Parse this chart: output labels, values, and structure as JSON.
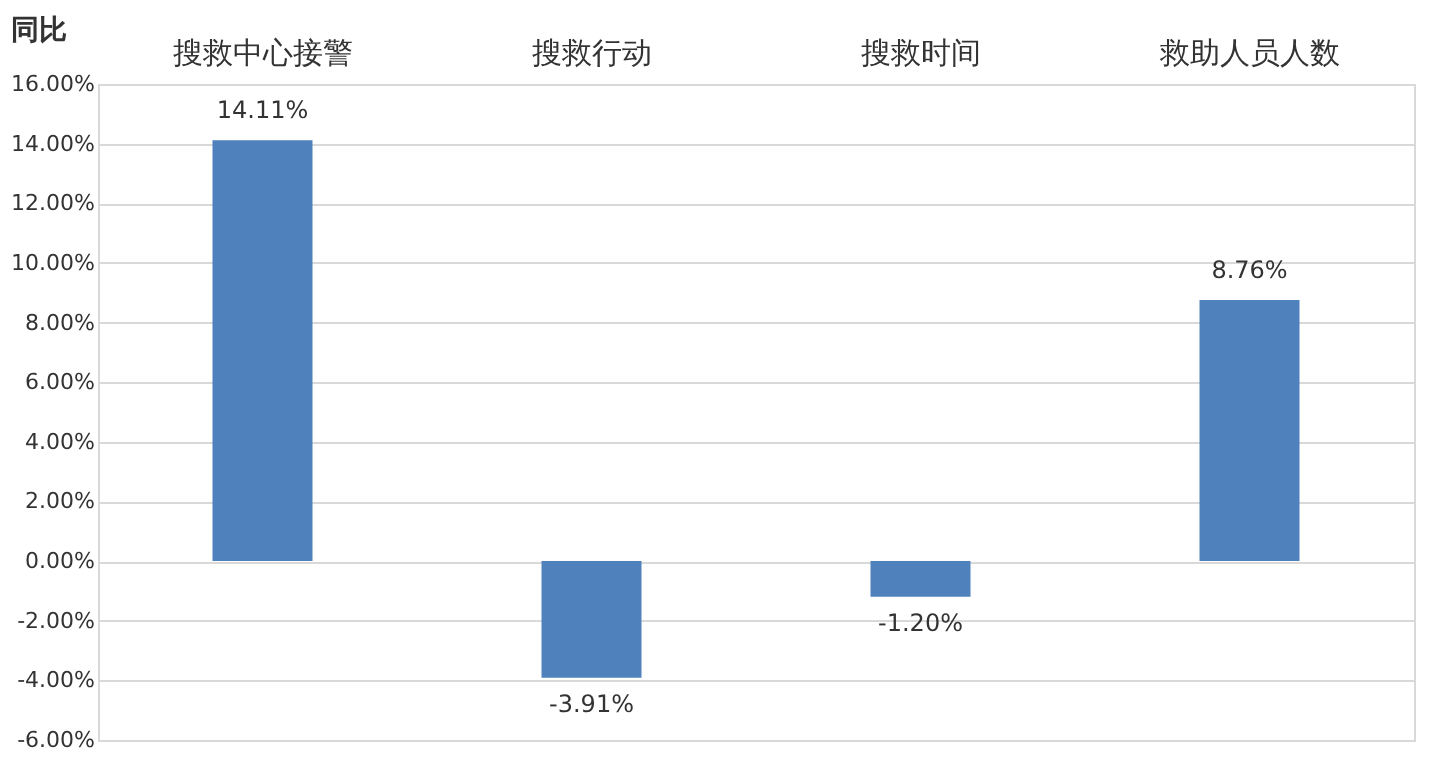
{
  "chart_data": {
    "type": "bar",
    "ylabel": "同比",
    "categories": [
      "搜救中心接警",
      "搜救行动",
      "搜救时间",
      "救助人员人数"
    ],
    "values": [
      14.11,
      -3.91,
      -1.2,
      8.76
    ],
    "value_labels": [
      "14.11%",
      "-3.91%",
      "-1.20%",
      "8.76%"
    ],
    "color": "#4f81bd",
    "ylim": [
      -6,
      16
    ],
    "yticks": [
      {
        "value": -6,
        "label": "-6.00%"
      },
      {
        "value": -4,
        "label": "-4.00%"
      },
      {
        "value": -2,
        "label": "-2.00%"
      },
      {
        "value": 0,
        "label": "0.00%"
      },
      {
        "value": 2,
        "label": "2.00%"
      },
      {
        "value": 4,
        "label": "4.00%"
      },
      {
        "value": 6,
        "label": "6.00%"
      },
      {
        "value": 8,
        "label": "8.00%"
      },
      {
        "value": 10,
        "label": "10.00%"
      },
      {
        "value": 12,
        "label": "12.00%"
      },
      {
        "value": 14,
        "label": "14.00%"
      },
      {
        "value": 16,
        "label": "16.00%"
      }
    ],
    "grid": "y",
    "legend": false
  }
}
